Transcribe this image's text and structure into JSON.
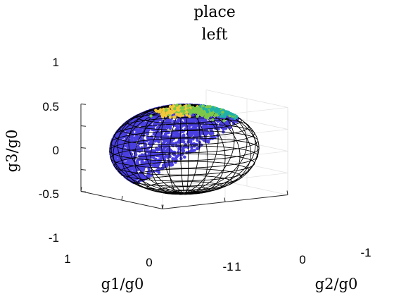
{
  "chart_data": {
    "type": "scatter",
    "subtype": "3d-scatter-on-unit-sphere-with-wireframe",
    "title_lines": [
      "place",
      "left"
    ],
    "xlabel": "g1/g0",
    "ylabel": "g2/g0",
    "zlabel": "g3/g0",
    "x_ticks": [
      "1",
      "0",
      "-1"
    ],
    "y_ticks": [
      "1",
      "0",
      "-1"
    ],
    "z_ticks": [
      "1",
      "0.5",
      "0",
      "-0.5",
      "-1"
    ],
    "xlim": [
      -1,
      1
    ],
    "ylim": [
      -1,
      1
    ],
    "zlim": [
      -1,
      1
    ],
    "grid": true,
    "sphere_wireframe": true,
    "colors": {
      "base_points": "#4a3fe0",
      "highlight_low": "#20b0a8",
      "highlight_mid": "#7cc84a",
      "highlight_high": "#f2c83a",
      "wireframe": "#000000",
      "axes": "#262626",
      "grid": "#e3e3e3"
    },
    "clusters": [
      {
        "center": [
          0.55,
          0.25,
          0.62
        ],
        "spread": 0.12,
        "count": 160,
        "level": "high"
      },
      {
        "center": [
          0.3,
          0.5,
          0.62
        ],
        "spread": 0.14,
        "count": 130,
        "level": "mid"
      },
      {
        "center": [
          0.0,
          0.65,
          0.7
        ],
        "spread": 0.16,
        "count": 110,
        "level": "low"
      }
    ]
  }
}
